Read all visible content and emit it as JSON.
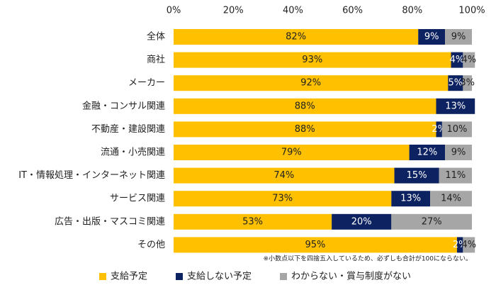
{
  "chart_data": {
    "type": "stacked-bar-horizontal",
    "categories": [
      "全体",
      "商社",
      "メーカー",
      "金融・コンサル関連",
      "不動産・建設関連",
      "流通・小売関連",
      "IT・情報処理・インターネット関連",
      "サービス関連",
      "広告・出版・マスコミ関連",
      "その他"
    ],
    "series": [
      {
        "name": "支給予定",
        "color": "#ffc000",
        "values": [
          82,
          93,
          92,
          88,
          88,
          79,
          74,
          73,
          53,
          95
        ],
        "value_labels": [
          "82%",
          "93%",
          "92%",
          "88%",
          "88%",
          "79%",
          "74%",
          "73%",
          "53%",
          "95%"
        ]
      },
      {
        "name": "支給しない予定",
        "color": "#0d2260",
        "values": [
          9,
          4,
          5,
          13,
          2,
          12,
          15,
          13,
          20,
          2
        ],
        "value_labels": [
          "9%",
          "4%",
          "5%",
          "13%",
          "2%",
          "12%",
          "15%",
          "13%",
          "20%",
          "2%"
        ]
      },
      {
        "name": "わからない・賞与制度がない",
        "color": "#a6a6a6",
        "values": [
          9,
          4,
          3,
          null,
          10,
          9,
          11,
          14,
          27,
          4
        ],
        "value_labels": [
          "9%",
          "4%",
          "3%",
          null,
          "10%",
          "9%",
          "11%",
          "14%",
          "27%",
          "4%"
        ]
      }
    ],
    "xlim": [
      0,
      100
    ],
    "xticks": [
      {
        "value": 0,
        "label": "0%"
      },
      {
        "value": 20,
        "label": "20%"
      },
      {
        "value": 40,
        "label": "40%"
      },
      {
        "value": 60,
        "label": "60%"
      },
      {
        "value": 80,
        "label": "80%"
      },
      {
        "value": 100,
        "label": "100%"
      }
    ],
    "note": "※小数点以下を四捨五入しているため、必ずしも合計が100にならない。",
    "legend": "bottom"
  }
}
